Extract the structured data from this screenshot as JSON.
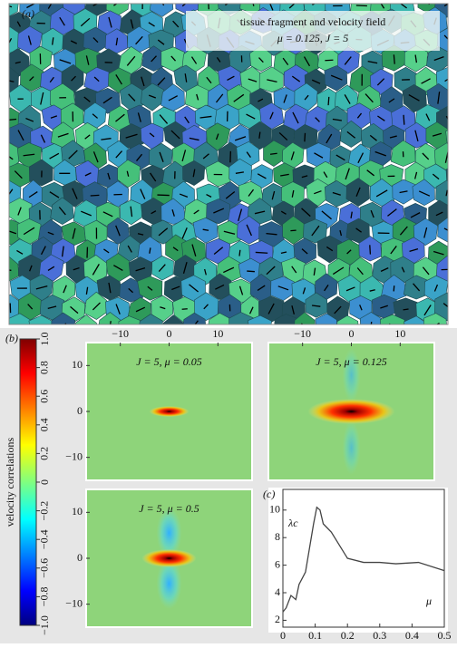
{
  "panel_a": {
    "label": "(a)",
    "title": "tissue fragment and velocity field",
    "subtitle": "μ = 0.125, J = 5"
  },
  "panel_b": {
    "label": "(b)",
    "colorbar": {
      "label": "velocity correlations",
      "lim": [
        -1,
        1
      ],
      "ticks": [
        {
          "value": 1,
          "label": "1.0"
        },
        {
          "value": 0.8,
          "label": "0.8"
        },
        {
          "value": 0.6,
          "label": "0.6"
        },
        {
          "value": 0.4,
          "label": "0.4"
        },
        {
          "value": 0.2,
          "label": "0.2"
        },
        0,
        {
          "value": -0.2,
          "label": "−0.2"
        },
        {
          "value": -0.4,
          "label": "−0.4"
        },
        {
          "value": -0.6,
          "label": "−0.6"
        },
        {
          "value": -0.8,
          "label": "−0.8"
        },
        {
          "value": -1,
          "label": "−1.0"
        }
      ]
    },
    "xlim": [
      -17,
      17
    ],
    "ylim": [
      -15,
      15
    ],
    "xticks": [
      {
        "value": -10,
        "label": "−10"
      },
      0,
      10
    ],
    "yticks": [
      10,
      0,
      {
        "value": -10,
        "label": "−10"
      }
    ],
    "maps": [
      {
        "title": "J = 5, μ = 0.05"
      },
      {
        "title": "J = 5, μ = 0.125"
      },
      {
        "title": "J = 5, μ = 0.5"
      }
    ]
  },
  "chart_data": {
    "type": "line",
    "label": "(c)",
    "y_label": "λc",
    "x_label": "μ",
    "color": "#444444",
    "x": [
      0,
      0.01,
      0.025,
      0.04,
      0.05,
      0.07,
      0.095,
      0.105,
      0.115,
      0.125,
      0.15,
      0.2,
      0.25,
      0.3,
      0.35,
      0.42,
      0.5
    ],
    "values": [
      2.6,
      2.9,
      3.8,
      3.5,
      4.6,
      5.5,
      9.0,
      10.2,
      10.0,
      9.0,
      8.4,
      6.5,
      6.2,
      6.2,
      6.1,
      6.2,
      5.6
    ],
    "xlim": [
      0,
      0.5
    ],
    "ylim": [
      1.5,
      11.5
    ],
    "xticks": [
      0,
      0.1,
      0.2,
      0.3,
      0.4,
      0.5
    ],
    "yticks": [
      2,
      4,
      6,
      8,
      10
    ]
  }
}
